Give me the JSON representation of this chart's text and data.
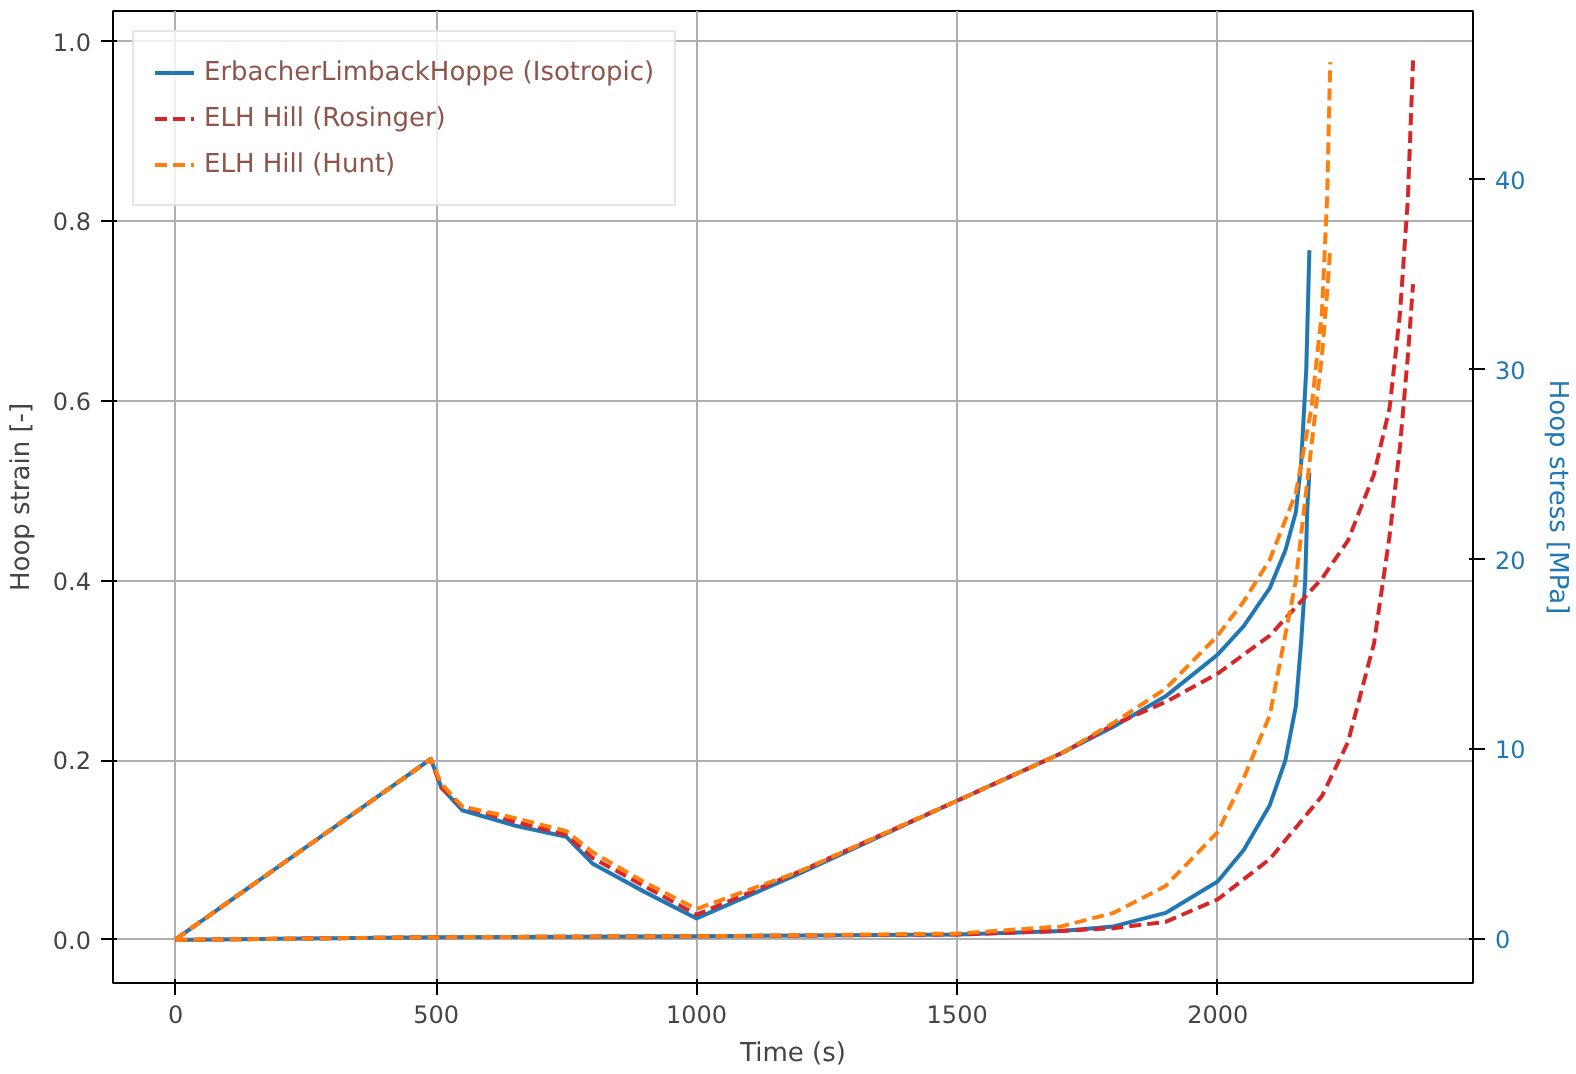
{
  "chart_data": {
    "type": "line",
    "xlabel": "Time (s)",
    "ylabel": "Hoop strain [-]",
    "y2label": "Hoop stress [MPa]",
    "xlim": [
      -120,
      2490
    ],
    "xticks": [
      0,
      500,
      1000,
      1500,
      2000
    ],
    "ylim": [
      -0.048,
      1.034
    ],
    "yticks": [
      {
        "value": 0,
        "label": "0.0"
      },
      0.2,
      0.4,
      0.6,
      0.8,
      {
        "value": 1,
        "label": "1.0"
      }
    ],
    "y2lim": [
      -2.3,
      48.9
    ],
    "y2ticks": [
      0,
      10,
      20,
      30,
      40
    ],
    "grid": true,
    "legend": "top left",
    "series": [
      {
        "name": "ErbacherLimbackHoppe (Isotropic)",
        "color": "#1f77b4",
        "line_style": "solid",
        "x": [
          0,
          500,
          1000,
          1500,
          1700,
          1800,
          1900,
          2000,
          2050,
          2100,
          2130,
          2150,
          2160,
          2168,
          2172,
          2176
        ],
        "values": [
          0,
          0.003,
          0.004,
          0.006,
          0.01,
          0.015,
          0.03,
          0.065,
          0.1,
          0.15,
          0.2,
          0.26,
          0.33,
          0.4,
          0.48,
          0.52
        ]
      },
      {
        "color": "#1f77b4",
        "line_style": "solid",
        "axis": "y2",
        "x": [
          0,
          490,
          510,
          550,
          650,
          750,
          800,
          900,
          1000,
          1200,
          1500,
          1700,
          1800,
          1900,
          2000,
          2050,
          2100,
          2130,
          2150,
          2160,
          2170,
          2176
        ],
        "values": [
          0,
          9.5,
          8,
          6.8,
          6,
          5.4,
          4,
          2.5,
          1.1,
          3.5,
          7.3,
          9.8,
          11.2,
          12.8,
          15,
          16.5,
          18.5,
          20.5,
          22.5,
          25,
          30,
          36.3
        ]
      },
      {
        "name": "ELH Hill (Rosinger)",
        "color": "#d62728",
        "line_style": "dashed",
        "x": [
          0,
          500,
          1000,
          1500,
          1700,
          1800,
          1900,
          2000,
          2100,
          2200,
          2250,
          2300,
          2330,
          2350,
          2365,
          2375
        ],
        "values": [
          0,
          0.003,
          0.004,
          0.006,
          0.01,
          0.013,
          0.02,
          0.045,
          0.09,
          0.16,
          0.22,
          0.33,
          0.45,
          0.55,
          0.65,
          0.73
        ]
      },
      {
        "color": "#d62728",
        "line_style": "dashed",
        "axis": "y2",
        "x": [
          0,
          490,
          510,
          550,
          650,
          750,
          800,
          900,
          1000,
          1200,
          1500,
          1700,
          1800,
          1900,
          2000,
          2100,
          2200,
          2250,
          2300,
          2330,
          2350,
          2365,
          2375
        ],
        "values": [
          0,
          9.5,
          8,
          7,
          6.2,
          5.5,
          4.3,
          2.8,
          1.3,
          3.6,
          7.3,
          9.8,
          11.3,
          12.5,
          14,
          16,
          19,
          21,
          24.5,
          28,
          33,
          39,
          46.3
        ]
      },
      {
        "name": "ELH Hill (Hunt)",
        "color": "#ff7f0e",
        "line_style": "dashed",
        "x": [
          0,
          500,
          1000,
          1500,
          1700,
          1800,
          1900,
          2000,
          2050,
          2100,
          2150,
          2180,
          2200,
          2210,
          2216
        ],
        "values": [
          0,
          0.003,
          0.004,
          0.007,
          0.015,
          0.03,
          0.06,
          0.12,
          0.18,
          0.25,
          0.4,
          0.55,
          0.65,
          0.72,
          0.77
        ]
      },
      {
        "color": "#ff7f0e",
        "line_style": "dashed",
        "axis": "y2",
        "x": [
          0,
          490,
          510,
          550,
          650,
          750,
          800,
          900,
          1000,
          1200,
          1500,
          1700,
          1800,
          1900,
          2000,
          2050,
          2100,
          2150,
          2180,
          2200,
          2210,
          2216
        ],
        "values": [
          0,
          9.5,
          8.2,
          7,
          6.4,
          5.7,
          4.6,
          3,
          1.6,
          3.6,
          7.3,
          9.8,
          11.4,
          13.2,
          16,
          17.8,
          20,
          23.5,
          28,
          33,
          39,
          46.2
        ]
      }
    ]
  }
}
